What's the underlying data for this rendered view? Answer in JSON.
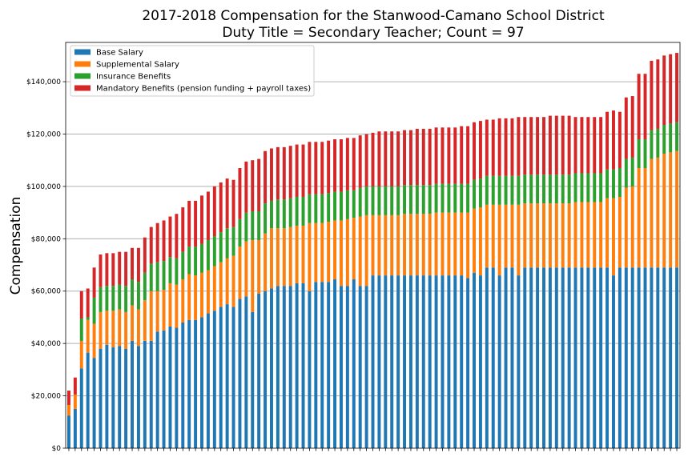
{
  "chart_data": {
    "type": "bar",
    "stacked": true,
    "title": "2017-2018 Compensation for the Stanwood-Camano School District",
    "subtitle": "Duty Title = Secondary Teacher; Count = 97",
    "ylabel": "Compensation",
    "xlabel": "",
    "ylim": [
      0,
      155000
    ],
    "yticks": [
      0,
      20000,
      40000,
      60000,
      80000,
      100000,
      120000,
      140000
    ],
    "ytick_labels": [
      "$0",
      "$20,000",
      "$40,000",
      "$60,000",
      "$80,000",
      "$100,000",
      "$120,000",
      "$140,000"
    ],
    "grid": "horizontal",
    "legend_position": "top-left",
    "colors": {
      "base": "#1f77b4",
      "supplemental": "#ff7f0e",
      "insurance": "#2ca02c",
      "mandatory": "#d62728",
      "grid": "#b0b0b0"
    },
    "series": [
      {
        "name": "Base Salary",
        "color": "#1f77b4",
        "values": [
          12500,
          15000,
          30500,
          36500,
          34500,
          38000,
          39500,
          38500,
          39000,
          38000,
          41000,
          39000,
          41000,
          41000,
          44500,
          45000,
          46500,
          46000,
          48000,
          49000,
          49000,
          50000,
          51500,
          52500,
          54000,
          55000,
          54000,
          57000,
          58000,
          52000,
          59000,
          60000,
          61000,
          62000,
          62000,
          62000,
          63000,
          63000,
          60000,
          63500,
          63500,
          63500,
          64500,
          62000,
          62000,
          64500,
          62000,
          62000,
          66000,
          66000,
          66000,
          66000,
          66000,
          66000,
          66000,
          66000,
          66000,
          66000,
          66000,
          66000,
          66000,
          66000,
          66000,
          65000,
          67000,
          66000,
          69000,
          69000,
          66000,
          69000,
          69000,
          66000,
          69000,
          69000,
          69000,
          69000,
          69000,
          69000,
          69000,
          69000,
          69000,
          69000,
          69000,
          69000,
          69000,
          69000,
          66000,
          69000,
          69000,
          69000,
          69000,
          69000,
          69000,
          69000,
          69000,
          69000,
          69000
        ]
      },
      {
        "name": "Supplemental Salary",
        "color": "#ff7f0e",
        "values": [
          4000,
          5500,
          10500,
          12500,
          13000,
          14000,
          13000,
          14000,
          14000,
          14000,
          13500,
          14000,
          15500,
          19000,
          15500,
          15500,
          16500,
          16500,
          16500,
          17500,
          17000,
          17000,
          16500,
          17000,
          17000,
          17500,
          19500,
          20000,
          21000,
          27500,
          20500,
          22000,
          23000,
          22000,
          22000,
          22500,
          22000,
          22000,
          26000,
          22500,
          22500,
          23000,
          22500,
          25000,
          25500,
          23500,
          26500,
          27000,
          23000,
          23000,
          23000,
          23000,
          23000,
          23500,
          23500,
          23500,
          23500,
          23500,
          24000,
          24000,
          24000,
          24000,
          24000,
          25000,
          24500,
          26000,
          24000,
          24000,
          27000,
          24000,
          24000,
          27000,
          24500,
          24500,
          24500,
          24500,
          24500,
          24500,
          24500,
          24500,
          25000,
          25000,
          25000,
          25000,
          25000,
          26500,
          29500,
          27000,
          30500,
          31000,
          38000,
          38000,
          41500,
          42000,
          43500,
          44000,
          44500
        ]
      },
      {
        "name": "Insurance Benefits",
        "color": "#2ca02c",
        "values": [
          0,
          0,
          8500,
          1000,
          10000,
          9500,
          9500,
          9500,
          9500,
          10000,
          10000,
          10500,
          10500,
          10500,
          11000,
          11000,
          10000,
          10000,
          10500,
          10500,
          11000,
          11000,
          11500,
          11500,
          11500,
          11500,
          11000,
          10500,
          11000,
          11000,
          11000,
          11500,
          10500,
          11000,
          11000,
          11000,
          11000,
          11000,
          11000,
          11000,
          11000,
          11000,
          11000,
          11000,
          11000,
          10500,
          11000,
          11000,
          11000,
          11000,
          11000,
          11000,
          11000,
          11000,
          11000,
          11000,
          11000,
          11000,
          11000,
          11000,
          11000,
          11000,
          11000,
          11000,
          11000,
          11000,
          11000,
          11000,
          11000,
          11000,
          11000,
          11000,
          11000,
          11000,
          11000,
          11000,
          11000,
          11000,
          11000,
          11000,
          11000,
          11000,
          11000,
          11000,
          11000,
          11000,
          11000,
          11000,
          11000,
          11000,
          11000,
          11000,
          11000,
          11000,
          11000,
          11000,
          11000
        ]
      },
      {
        "name": "Mandatory Benefits (pension funding + payroll taxes)",
        "color": "#d62728",
        "values": [
          5500,
          6500,
          10500,
          11000,
          11500,
          12500,
          12500,
          12500,
          12500,
          13000,
          12000,
          13000,
          13500,
          14000,
          15000,
          15500,
          15500,
          17000,
          17000,
          17500,
          17500,
          18500,
          18500,
          19000,
          19000,
          19000,
          18000,
          19500,
          19500,
          19500,
          20000,
          20000,
          20000,
          20000,
          20000,
          20000,
          20000,
          20000,
          20000,
          20000,
          20000,
          20000,
          20000,
          20000,
          20000,
          20000,
          20000,
          20000,
          20500,
          21000,
          21000,
          21000,
          21000,
          21000,
          21000,
          21500,
          21500,
          21500,
          21500,
          21500,
          21500,
          21500,
          22000,
          22000,
          22000,
          22000,
          21500,
          21500,
          22000,
          22000,
          22000,
          22500,
          22000,
          22000,
          22000,
          22000,
          22500,
          22500,
          22500,
          22500,
          21500,
          21500,
          21500,
          21500,
          21500,
          22000,
          22500,
          21500,
          23500,
          23500,
          25000,
          25000,
          26500,
          26500,
          26500,
          26500,
          26500
        ]
      }
    ]
  }
}
